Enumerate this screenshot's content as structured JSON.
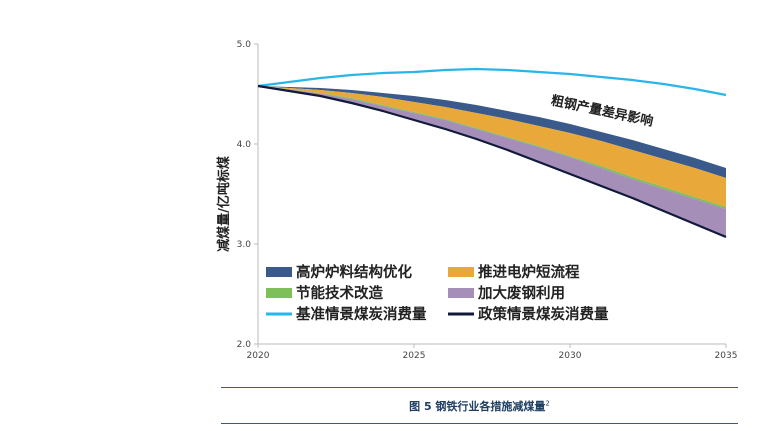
{
  "chart_data": {
    "type": "area",
    "ylabel": "减煤量/亿吨标煤",
    "xlabel": "",
    "xlim": [
      2020,
      2035
    ],
    "ylim": [
      2.0,
      5.0
    ],
    "x_ticks": [
      "2020",
      "2025",
      "2030",
      "2035"
    ],
    "y_ticks": [
      "2.0",
      "3.0",
      "4.0",
      "5.0"
    ],
    "grid": false,
    "x": [
      2020,
      2021,
      2022,
      2023,
      2024,
      2025,
      2026,
      2027,
      2028,
      2029,
      2030,
      2031,
      2032,
      2033,
      2034,
      2035
    ],
    "lines": [
      {
        "name": "基准情景煤炭消费量",
        "color": "#2ab5e8",
        "values": [
          4.58,
          4.62,
          4.66,
          4.69,
          4.71,
          4.72,
          4.74,
          4.75,
          4.74,
          4.72,
          4.7,
          4.67,
          4.64,
          4.6,
          4.55,
          4.49
        ]
      },
      {
        "name": "政策情景煤炭消费量",
        "color": "#111a3a",
        "values": [
          4.58,
          4.53,
          4.48,
          4.41,
          4.33,
          4.24,
          4.15,
          4.05,
          3.94,
          3.82,
          3.7,
          3.58,
          3.46,
          3.33,
          3.2,
          3.07
        ]
      }
    ],
    "bands": [
      {
        "name": "高炉炉料结构优化",
        "color": "#3a5a8c",
        "lower": [
          4.58,
          4.56,
          4.54,
          4.51,
          4.47,
          4.42,
          4.37,
          4.31,
          4.25,
          4.18,
          4.11,
          4.03,
          3.94,
          3.85,
          3.76,
          3.66
        ],
        "upper": [
          4.58,
          4.57,
          4.56,
          4.54,
          4.51,
          4.48,
          4.44,
          4.39,
          4.33,
          4.27,
          4.2,
          4.12,
          4.04,
          3.95,
          3.86,
          3.76
        ]
      },
      {
        "name": "推进电炉短流程",
        "color": "#e8a93a",
        "lower": [
          4.58,
          4.55,
          4.51,
          4.46,
          4.39,
          4.32,
          4.25,
          4.16,
          4.07,
          3.98,
          3.88,
          3.78,
          3.67,
          3.57,
          3.47,
          3.37
        ],
        "upper": [
          4.58,
          4.56,
          4.54,
          4.51,
          4.47,
          4.42,
          4.37,
          4.31,
          4.25,
          4.18,
          4.11,
          4.03,
          3.94,
          3.85,
          3.76,
          3.66
        ]
      },
      {
        "name": "节能技术改造",
        "color": "#7fbf5a",
        "lower": [
          4.58,
          4.545,
          4.505,
          4.45,
          4.38,
          4.31,
          4.24,
          4.15,
          4.06,
          3.97,
          3.87,
          3.76,
          3.65,
          3.55,
          3.45,
          3.35
        ],
        "upper": [
          4.58,
          4.55,
          4.51,
          4.46,
          4.39,
          4.32,
          4.25,
          4.16,
          4.07,
          3.98,
          3.88,
          3.78,
          3.67,
          3.57,
          3.47,
          3.37
        ]
      },
      {
        "name": "加大废钢利用",
        "color": "#a58fb8",
        "lower": [
          4.58,
          4.53,
          4.48,
          4.41,
          4.33,
          4.24,
          4.15,
          4.05,
          3.94,
          3.82,
          3.7,
          3.58,
          3.46,
          3.33,
          3.2,
          3.07
        ],
        "upper": [
          4.58,
          4.545,
          4.505,
          4.45,
          4.38,
          4.31,
          4.24,
          4.15,
          4.06,
          3.97,
          3.87,
          3.76,
          3.65,
          3.55,
          3.45,
          3.35
        ]
      }
    ],
    "legend": {
      "placement": "lower-left",
      "items": [
        {
          "name": "高炉炉料结构优化",
          "kind": "patch",
          "color": "#3a5a8c"
        },
        {
          "name": "推进电炉短流程",
          "kind": "patch",
          "color": "#e8a93a"
        },
        {
          "name": "节能技术改造",
          "kind": "patch",
          "color": "#7fbf5a"
        },
        {
          "name": "加大废钢利用",
          "kind": "patch",
          "color": "#a58fb8"
        },
        {
          "name": "基准情景煤炭消费量",
          "kind": "line",
          "color": "#2ab5e8"
        },
        {
          "name": "政策情景煤炭消费量",
          "kind": "line",
          "color": "#111a3a"
        }
      ]
    },
    "annotations": [
      {
        "text": "粗钢产量差异影响",
        "x": 2031,
        "y": 4.29,
        "rotation": 12
      }
    ]
  },
  "caption": {
    "text": "图 5  钢铁行业各措施减煤量",
    "footnote": "2"
  }
}
